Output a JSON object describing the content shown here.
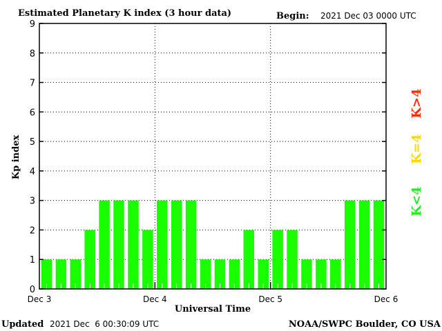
{
  "chart_data": {
    "type": "bar",
    "title": "Estimated Planetary K index (3 hour data)",
    "begin_label": "Begin:",
    "begin_value": "2021 Dec 03 0000 UTC",
    "xlabel": "Universal Time",
    "ylabel": "Kp index",
    "ylim": [
      0,
      9
    ],
    "yticks": [
      "0",
      "1",
      "2",
      "3",
      "4",
      "5",
      "6",
      "7",
      "8",
      "9"
    ],
    "xticks": [
      "Dec 3",
      "Dec 4",
      "Dec 5",
      "Dec 6"
    ],
    "grid": "dotted horizontal at each integer, dotted vertical at day boundaries",
    "values": [
      1,
      1,
      1,
      2,
      3,
      3,
      3,
      2,
      3,
      3,
      3,
      1,
      1,
      1,
      2,
      1,
      2,
      2,
      1,
      1,
      1,
      3,
      3,
      3
    ],
    "bar_color": "#1aff00",
    "legend": [
      {
        "label": "K<4",
        "color": "#22ee22"
      },
      {
        "label": "K=4",
        "color": "#ffd700"
      },
      {
        "label": "K>4",
        "color": "#ff2a00"
      }
    ],
    "legend_placement": "right"
  },
  "footer": {
    "updated_label": "Updated",
    "updated_value": "2021 Dec  6 00:30:09 UTC",
    "source": "NOAA/SWPC Boulder, CO USA"
  }
}
